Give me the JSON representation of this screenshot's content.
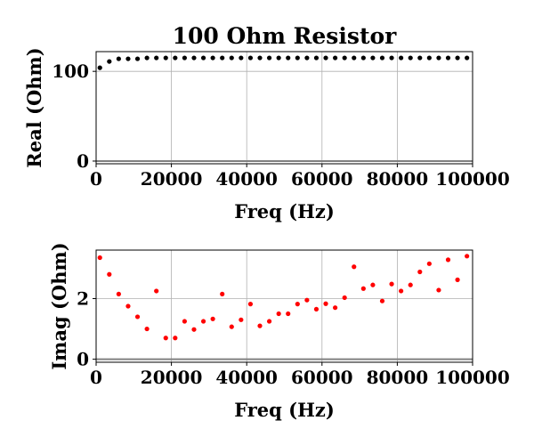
{
  "chart_data": [
    {
      "type": "scatter",
      "title": "100 Ohm Resistor",
      "xlabel": "Freq (Hz)",
      "ylabel": "Real (Ohm)",
      "xlim": [
        0,
        100000
      ],
      "ylim": [
        -3,
        122
      ],
      "xticks": [
        0,
        20000,
        40000,
        60000,
        80000,
        100000
      ],
      "yticks": [
        0,
        100
      ],
      "grid": true,
      "reference_line_y": 0,
      "series": [
        {
          "color": "#000000",
          "x": [
            1000,
            3500,
            6000,
            8500,
            11000,
            13500,
            16000,
            18500,
            21000,
            23500,
            26000,
            28500,
            31000,
            33500,
            36000,
            38500,
            41000,
            43500,
            46000,
            48500,
            51000,
            53500,
            56000,
            58500,
            61000,
            63500,
            66000,
            68500,
            71000,
            73500,
            76000,
            78500,
            81000,
            83500,
            86000,
            88500,
            91000,
            93500,
            96000,
            98500
          ],
          "y": [
            104,
            111,
            114,
            114,
            114,
            115,
            115,
            115,
            115,
            115,
            115,
            115,
            115,
            115,
            115,
            115,
            115,
            115,
            115,
            115,
            115,
            115,
            115,
            115,
            115,
            115,
            115,
            115,
            115,
            115,
            115,
            115,
            115,
            115,
            115,
            115,
            115,
            115,
            115,
            115
          ]
        }
      ]
    },
    {
      "type": "scatter",
      "xlabel": "Freq (Hz)",
      "ylabel": "Imag (Ohm)",
      "xlim": [
        0,
        100000
      ],
      "ylim": [
        -0.1,
        3.6
      ],
      "xticks": [
        0,
        20000,
        40000,
        60000,
        80000,
        100000
      ],
      "yticks": [
        0,
        2
      ],
      "grid": true,
      "reference_line_y": 0,
      "series": [
        {
          "color": "#ff0000",
          "x": [
            1000,
            3500,
            6000,
            8500,
            11000,
            13500,
            16000,
            18500,
            21000,
            23500,
            26000,
            28500,
            31000,
            33500,
            36000,
            38500,
            41000,
            43500,
            46000,
            48500,
            51000,
            53500,
            56000,
            58500,
            61000,
            63500,
            66000,
            68500,
            71000,
            73500,
            76000,
            78500,
            81000,
            83500,
            86000,
            88500,
            91000,
            93500,
            96000,
            98500
          ],
          "y": [
            3.35,
            2.8,
            2.15,
            1.75,
            1.4,
            1.0,
            2.25,
            0.7,
            0.7,
            1.25,
            0.98,
            1.25,
            1.33,
            2.15,
            1.07,
            1.3,
            1.82,
            1.1,
            1.25,
            1.5,
            1.5,
            1.82,
            1.95,
            1.65,
            1.83,
            1.7,
            2.03,
            3.05,
            2.33,
            2.45,
            1.92,
            2.48,
            2.25,
            2.45,
            2.88,
            3.15,
            2.28,
            3.28,
            2.62,
            3.4
          ]
        }
      ]
    }
  ]
}
